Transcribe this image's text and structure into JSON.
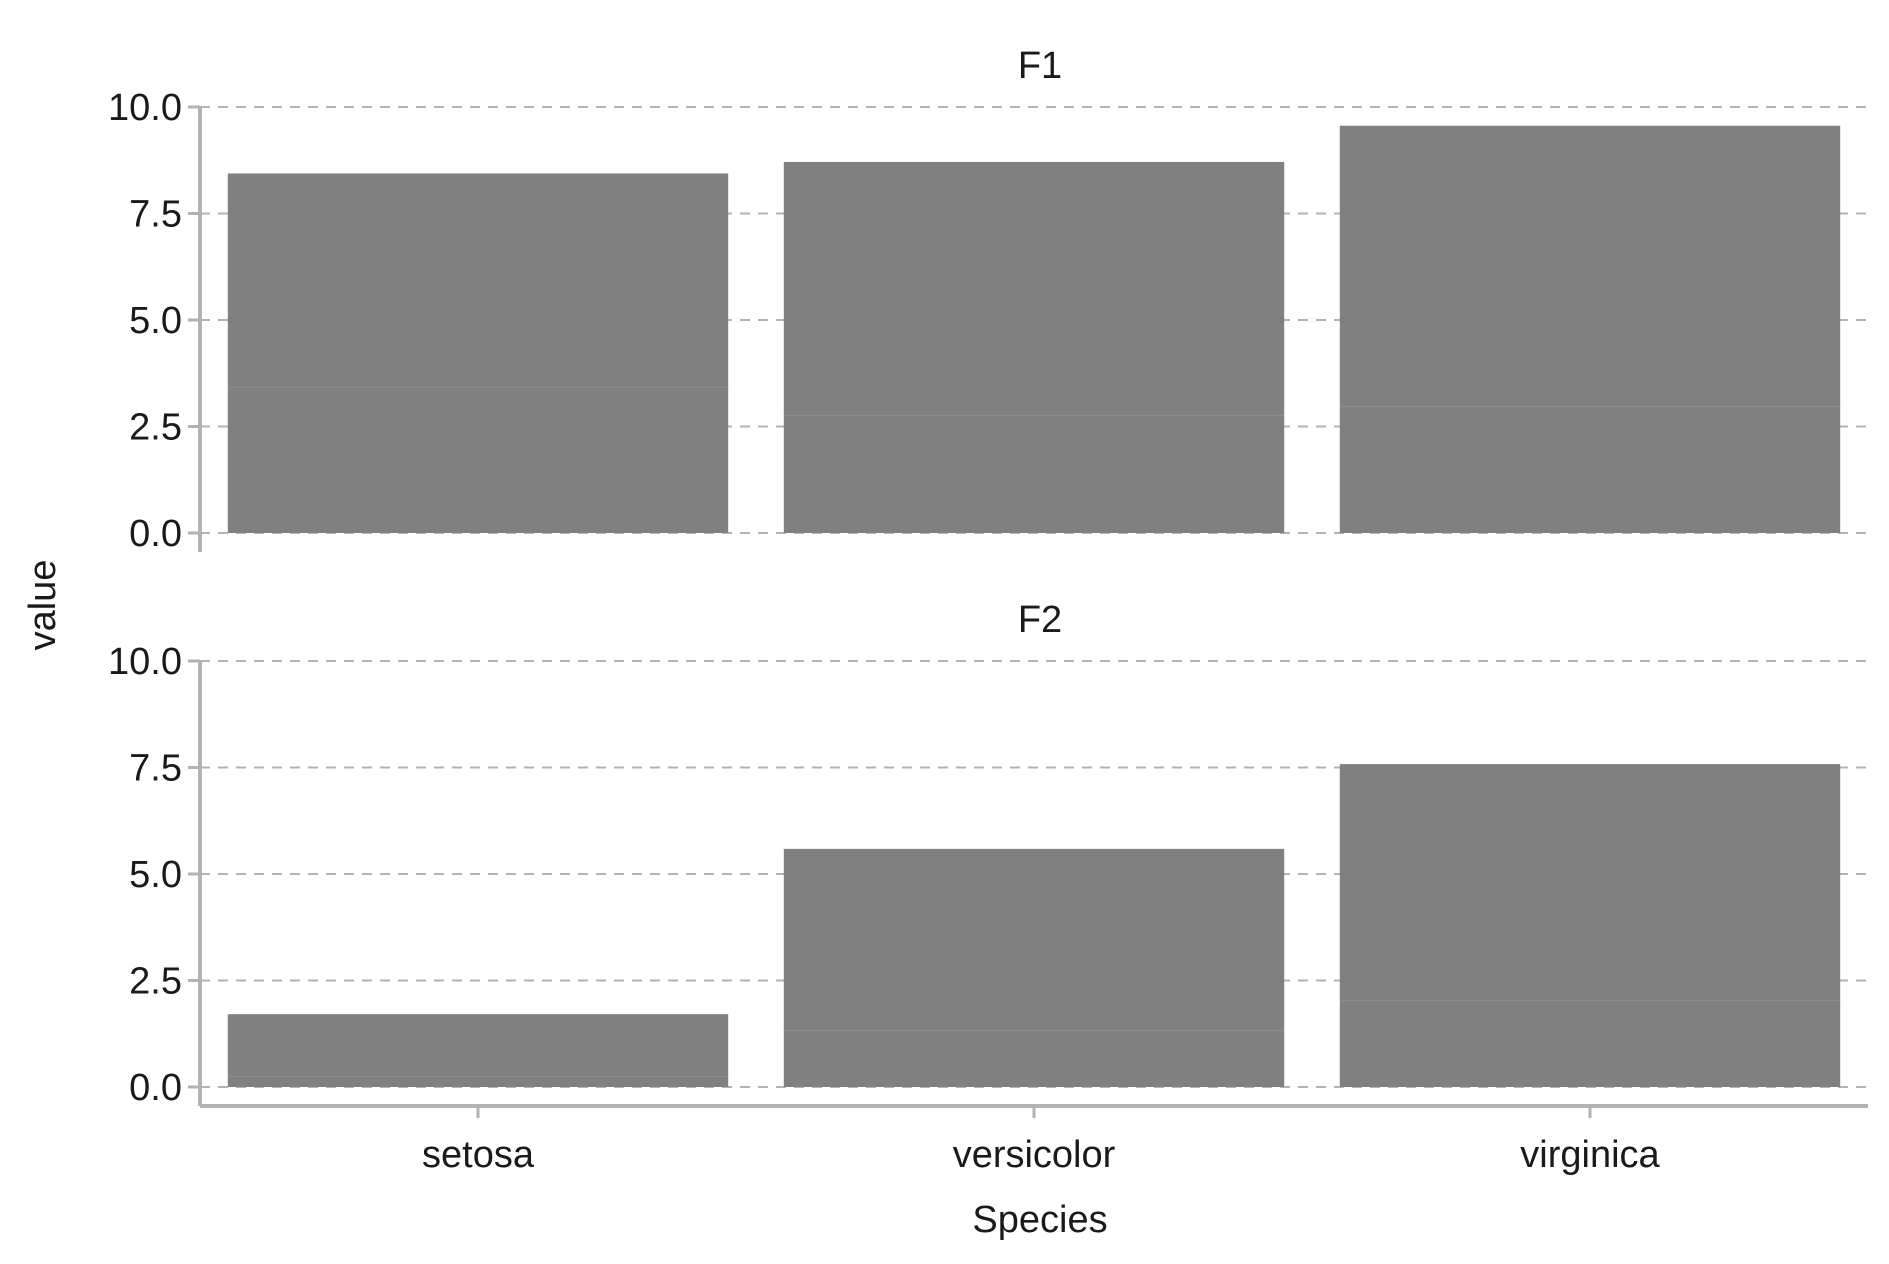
{
  "chart_data": {
    "type": "bar",
    "layout": "faceted-stacked",
    "xlabel": "Species",
    "ylabel": "value",
    "categories": [
      "setosa",
      "versicolor",
      "virginica"
    ],
    "ylim": [
      0,
      10
    ],
    "yticks": [
      "0.0",
      "2.5",
      "5.0",
      "7.5",
      "10.0"
    ],
    "grid": "horizontal-dashed",
    "legend": "none",
    "colors": {
      "bar": "#808080",
      "segment_divider": "#9a9a9a",
      "grid": "#b3b3b3",
      "axis": "#b3b3b3"
    },
    "facets": [
      {
        "title": "F1",
        "series": [
          {
            "values": [
              3.43,
              2.77,
              2.97
            ]
          },
          {
            "values": [
              5.01,
              5.94,
              6.59
            ]
          }
        ]
      },
      {
        "title": "F2",
        "series": [
          {
            "values": [
              0.25,
              1.33,
              2.03
            ]
          },
          {
            "values": [
              1.46,
              4.26,
              5.55
            ]
          }
        ]
      }
    ]
  }
}
